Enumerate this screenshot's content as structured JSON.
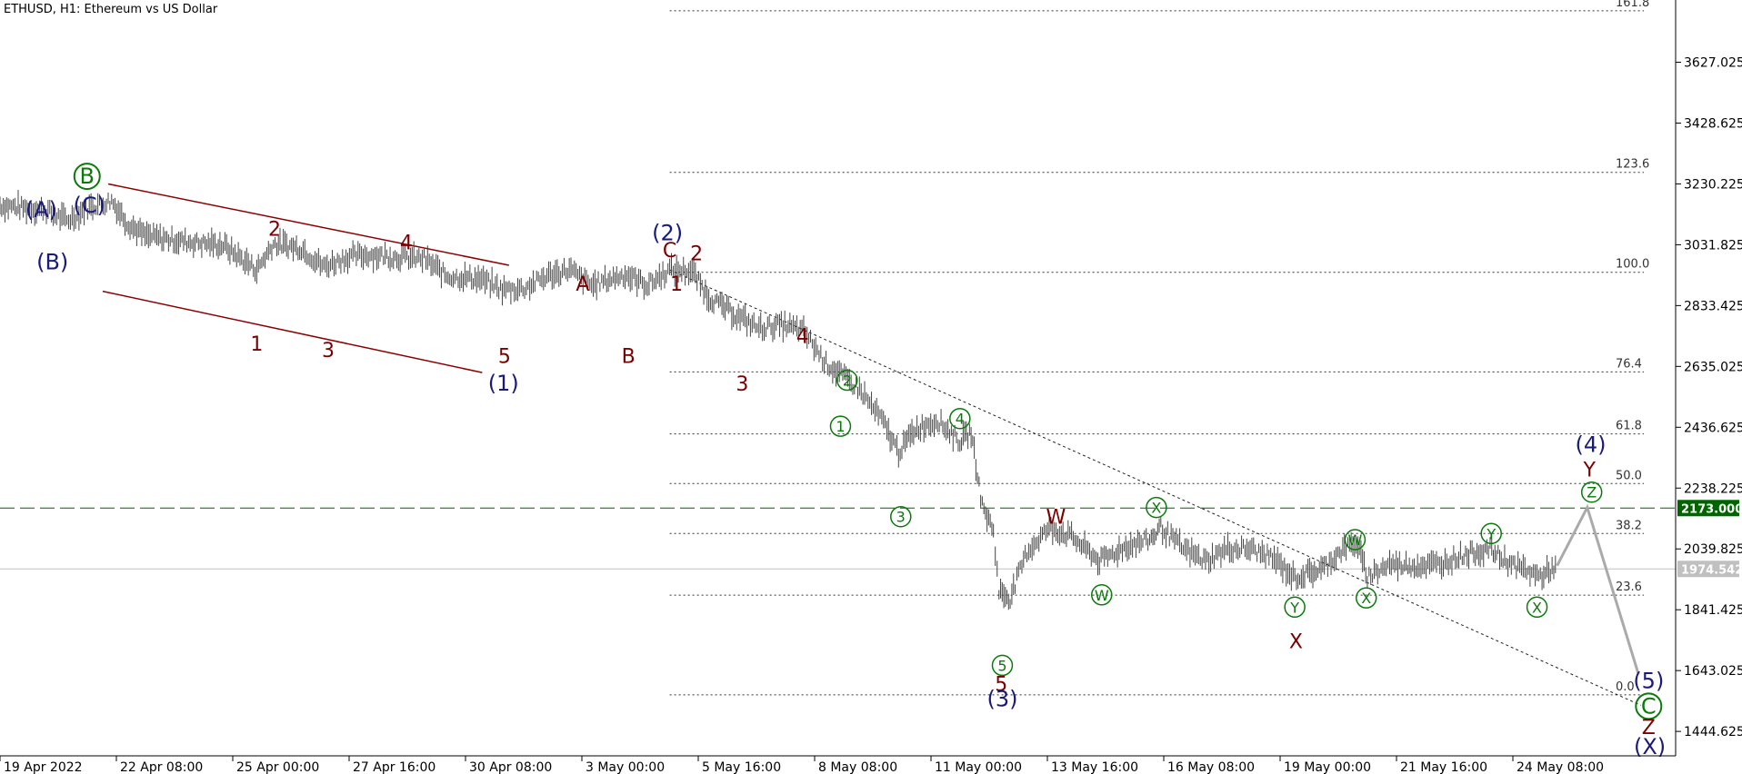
{
  "chart_data": {
    "type": "line",
    "title": "ETHUSD, H1:  Ethereum vs US Dollar",
    "x_ticks": [
      "19 Apr 2022",
      "22 Apr 08:00",
      "25 Apr 00:00",
      "27 Apr 16:00",
      "30 Apr 08:00",
      "3 May 00:00",
      "5 May 16:00",
      "8 May 08:00",
      "11 May 00:00",
      "13 May 16:00",
      "16 May 08:00",
      "19 May 00:00",
      "21 May 16:00",
      "24 May 08:00"
    ],
    "y_ticks": [
      "3627.025",
      "3428.625",
      "3230.225",
      "3031.825",
      "2833.425",
      "2635.025",
      "2436.625",
      "2238.225",
      "2039.825",
      "1841.425",
      "1643.025",
      "1444.625"
    ],
    "ylim": [
      1365,
      3830
    ],
    "fib_levels": [
      {
        "label": "161.8",
        "value": 3795
      },
      {
        "label": "123.6",
        "value": 3268
      },
      {
        "label": "100.0",
        "value": 2942
      },
      {
        "label": "76.4",
        "value": 2617
      },
      {
        "label": "61.8",
        "value": 2415
      },
      {
        "label": "50.0",
        "value": 2253
      },
      {
        "label": "38.2",
        "value": 2090
      },
      {
        "label": "23.6",
        "value": 1889
      },
      {
        "label": "0.0",
        "value": 1564
      }
    ],
    "price_line": {
      "value": "2173.000",
      "color": "#006400"
    },
    "current_price": {
      "value": "1974.542",
      "color": "#c0c0c0"
    },
    "series": [
      {
        "values": [
          [
            0,
            3160
          ],
          [
            40,
            3145
          ],
          [
            60,
            3110
          ],
          [
            80,
            3155
          ],
          [
            100,
            3175
          ],
          [
            115,
            3100
          ],
          [
            130,
            3060
          ],
          [
            160,
            3045
          ],
          [
            200,
            3030
          ],
          [
            230,
            2950
          ],
          [
            245,
            3035
          ],
          [
            270,
            3020
          ],
          [
            290,
            2960
          ],
          [
            310,
            2990
          ],
          [
            330,
            3000
          ],
          [
            360,
            2990
          ],
          [
            380,
            2985
          ],
          [
            400,
            2930
          ],
          [
            430,
            2920
          ],
          [
            450,
            2885
          ],
          [
            470,
            2890
          ],
          [
            490,
            2930
          ],
          [
            510,
            2950
          ],
          [
            530,
            2900
          ],
          [
            560,
            2935
          ],
          [
            580,
            2900
          ],
          [
            600,
            2950
          ],
          [
            620,
            2945
          ],
          [
            635,
            2860
          ],
          [
            660,
            2800
          ],
          [
            680,
            2760
          ],
          [
            700,
            2770
          ],
          [
            720,
            2750
          ],
          [
            740,
            2645
          ],
          [
            770,
            2560
          ],
          [
            790,
            2460
          ],
          [
            805,
            2355
          ],
          [
            820,
            2430
          ],
          [
            840,
            2460
          ],
          [
            860,
            2390
          ],
          [
            870,
            2420
          ],
          [
            880,
            2180
          ],
          [
            890,
            2100
          ],
          [
            895,
            1900
          ],
          [
            905,
            1880
          ],
          [
            920,
            2030
          ],
          [
            940,
            2110
          ],
          [
            960,
            2080
          ],
          [
            985,
            2000
          ],
          [
            1010,
            2050
          ],
          [
            1030,
            2070
          ],
          [
            1040,
            2110
          ],
          [
            1060,
            2040
          ],
          [
            1080,
            2000
          ],
          [
            1100,
            2040
          ],
          [
            1120,
            2040
          ],
          [
            1140,
            2010
          ],
          [
            1160,
            1945
          ],
          [
            1185,
            1975
          ],
          [
            1200,
            2030
          ],
          [
            1215,
            2060
          ],
          [
            1225,
            1950
          ],
          [
            1245,
            1990
          ],
          [
            1270,
            1985
          ],
          [
            1290,
            1990
          ],
          [
            1310,
            2020
          ],
          [
            1335,
            2040
          ],
          [
            1345,
            2010
          ],
          [
            1360,
            1980
          ],
          [
            1380,
            1950
          ],
          [
            1395,
            1985
          ]
        ]
      }
    ],
    "projection": {
      "values": [
        [
          1395,
          1985
        ],
        [
          1422,
          2175
        ],
        [
          1468,
          1630
        ]
      ]
    },
    "trendline": {
      "values": [
        [
          600,
          2950
        ],
        [
          1470,
          1530
        ]
      ]
    },
    "channel": {
      "values": [
        [
          [
            97,
            3230
          ],
          [
            456,
            2965
          ]
        ],
        [
          [
            92,
            2880
          ],
          [
            432,
            2615
          ]
        ]
      ]
    },
    "labels": [
      {
        "text": "(A)",
        "color": "blue",
        "x": 37,
        "y": 3145
      },
      {
        "text": "(B)",
        "color": "blue",
        "x": 47,
        "y": 2975
      },
      {
        "text": "(C)",
        "color": "blue",
        "x": 80,
        "y": 3160
      },
      {
        "text": "B",
        "color": "green-circle",
        "x": 78,
        "y": 3255
      },
      {
        "text": "2",
        "color": "red",
        "x": 246,
        "y": 3085
      },
      {
        "text": "4",
        "color": "red",
        "x": 364,
        "y": 3040
      },
      {
        "text": "1",
        "color": "red",
        "x": 230,
        "y": 2710
      },
      {
        "text": "3",
        "color": "red",
        "x": 294,
        "y": 2690
      },
      {
        "text": "5",
        "color": "red",
        "x": 452,
        "y": 2670
      },
      {
        "text": "(1)",
        "color": "blue",
        "x": 451,
        "y": 2580
      },
      {
        "text": "A",
        "color": "red",
        "x": 522,
        "y": 2905
      },
      {
        "text": "B",
        "color": "red",
        "x": 563,
        "y": 2670
      },
      {
        "text": "(2)",
        "color": "blue",
        "x": 598,
        "y": 3070
      },
      {
        "text": "C",
        "color": "red",
        "x": 600,
        "y": 3015
      },
      {
        "text": "1",
        "color": "red",
        "x": 606,
        "y": 2905
      },
      {
        "text": "2",
        "color": "red",
        "x": 624,
        "y": 3005
      },
      {
        "text": "4",
        "color": "red",
        "x": 719,
        "y": 2735
      },
      {
        "text": "3",
        "color": "red",
        "x": 665,
        "y": 2580
      },
      {
        "text": "2",
        "color": "green-circle",
        "x": 759,
        "y": 2590
      },
      {
        "text": "1",
        "color": "green-circle",
        "x": 753,
        "y": 2440
      },
      {
        "text": "4",
        "color": "green-circle",
        "x": 860,
        "y": 2465
      },
      {
        "text": "3",
        "color": "green-circle",
        "x": 807,
        "y": 2145
      },
      {
        "text": "5",
        "color": "green-circle",
        "x": 898,
        "y": 1660
      },
      {
        "text": "5",
        "color": "red",
        "x": 897,
        "y": 1600
      },
      {
        "text": "(3)",
        "color": "blue",
        "x": 898,
        "y": 1550
      },
      {
        "text": "W",
        "color": "red",
        "x": 946,
        "y": 2145
      },
      {
        "text": "W",
        "color": "green-circle",
        "x": 987,
        "y": 1890
      },
      {
        "text": "X",
        "color": "green-circle",
        "x": 1036,
        "y": 2175
      },
      {
        "text": "W",
        "color": "green-circle",
        "x": 1214,
        "y": 2070
      },
      {
        "text": "Y",
        "color": "green-circle",
        "x": 1160,
        "y": 1850
      },
      {
        "text": "X",
        "color": "red",
        "x": 1161,
        "y": 1740
      },
      {
        "text": "X",
        "color": "green-circle",
        "x": 1224,
        "y": 1880
      },
      {
        "text": "Y",
        "color": "green-circle",
        "x": 1336,
        "y": 2090
      },
      {
        "text": "X",
        "color": "green-circle",
        "x": 1377,
        "y": 1850
      },
      {
        "text": "(4)",
        "color": "blue",
        "x": 1425,
        "y": 2380
      },
      {
        "text": "Y",
        "color": "red",
        "x": 1424,
        "y": 2300
      },
      {
        "text": "Z",
        "color": "green-circle",
        "x": 1426,
        "y": 2225
      },
      {
        "text": "(5)",
        "color": "blue",
        "x": 1477,
        "y": 1610
      },
      {
        "text": "C",
        "color": "green-circle",
        "x": 1477,
        "y": 1527
      },
      {
        "text": "Z",
        "color": "red",
        "x": 1477,
        "y": 1460
      },
      {
        "text": "(X)",
        "color": "blue",
        "x": 1478,
        "y": 1395
      }
    ]
  }
}
